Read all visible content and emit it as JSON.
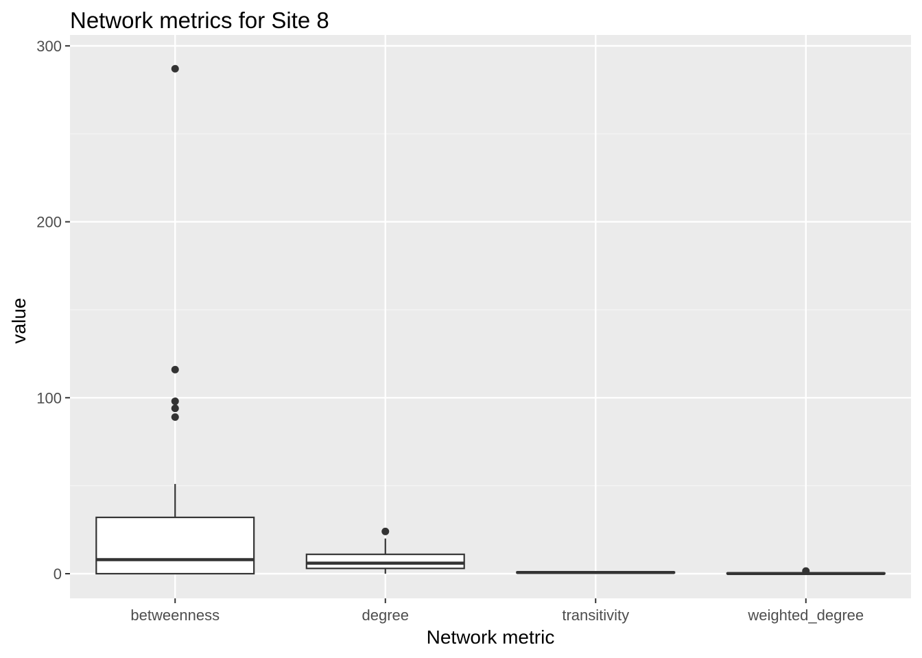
{
  "chart_data": {
    "type": "boxplot",
    "title": "Network metrics for Site 8",
    "xlabel": "Network metric",
    "ylabel": "value",
    "ylim": [
      -14,
      300
    ],
    "yticks": [
      0,
      100,
      200,
      300
    ],
    "categories": [
      "betweenness",
      "degree",
      "transitivity",
      "weighted_degree"
    ],
    "boxes": [
      {
        "category": "betweenness",
        "lower_whisker": 0,
        "q1": 0,
        "median": 8,
        "q3": 32,
        "upper_whisker": 51,
        "outliers": [
          287,
          116,
          98,
          94,
          89
        ]
      },
      {
        "category": "degree",
        "lower_whisker": 0,
        "q1": 3,
        "median": 6,
        "q3": 11,
        "upper_whisker": 20,
        "outliers": [
          24
        ]
      },
      {
        "category": "transitivity",
        "lower_whisker": 0.3,
        "q1": 0.5,
        "median": 0.7,
        "q3": 0.9,
        "upper_whisker": 1,
        "outliers": []
      },
      {
        "category": "weighted_degree",
        "lower_whisker": 0,
        "q1": 0,
        "median": 0.1,
        "q3": 0.3,
        "upper_whisker": 0.6,
        "outliers": [
          1.5
        ]
      }
    ],
    "grid": true,
    "legend": "none"
  },
  "colors": {
    "panel_background": "#ebebeb",
    "grid_major": "#ffffff",
    "grid_minor": "#f5f5f5",
    "box_fill": "#ffffff",
    "box_stroke": "#333333",
    "tick_text": "#4d4d4d",
    "title_text": "#000000"
  }
}
